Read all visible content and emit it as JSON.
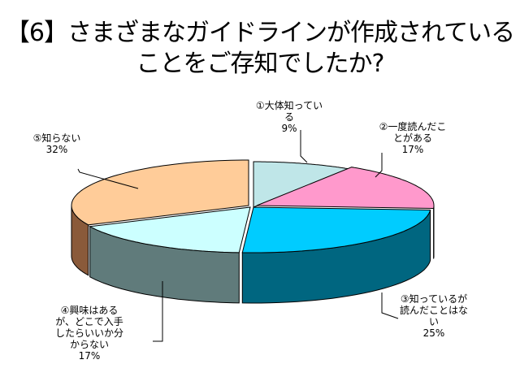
{
  "title_lines": [
    "【6】さまざまなガイドラインが作成されている",
    "ことをご存知でしたか?"
  ],
  "chart_data": {
    "type": "pie",
    "style": "3d-exploded",
    "title": "【6】さまざまなガイドラインが作成されていることをご存知でしたか?",
    "categories": [
      "①大体知っている",
      "②一度読んだことがある",
      "③知っているが読んだことはない",
      "④興味はあるが、どこで入手したらいいか分からない",
      "⑤知らない"
    ],
    "values": [
      9,
      17,
      25,
      17,
      32
    ],
    "unit": "%",
    "colors": [
      "#BFE6E8",
      "#FF99CC",
      "#00CCFF",
      "#CCFFFF",
      "#FFCC99"
    ],
    "side_colors": [
      "#6FA3A6",
      "#B3567F",
      "#006680",
      "#607B7B",
      "#8A5A3A"
    ],
    "labels": [
      {
        "lines": [
          "①大体知ってい",
          "る",
          "9%"
        ]
      },
      {
        "lines": [
          "②一度読んだこ",
          "とがある",
          "17%"
        ]
      },
      {
        "lines": [
          "③知っているが",
          "読んだことはな",
          "い",
          "25%"
        ]
      },
      {
        "lines": [
          "④興味はある",
          "が、どこで入手",
          "したらいいか分",
          "からない",
          "17%"
        ]
      },
      {
        "lines": [
          "⑤知らない",
          "32%"
        ]
      }
    ]
  }
}
